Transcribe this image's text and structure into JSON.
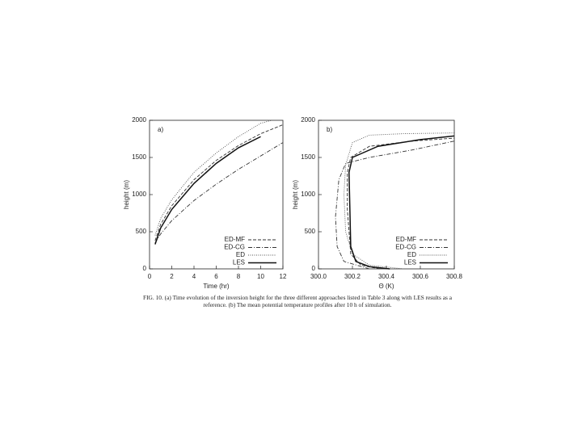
{
  "chart_data": [
    {
      "type": "line",
      "annotation": "a)",
      "x_label": "Time (hr)",
      "y_label": "height (m)",
      "xlim": [
        0,
        12
      ],
      "xticks": [
        0,
        2,
        4,
        6,
        8,
        10,
        12
      ],
      "ylim": [
        0,
        2000
      ],
      "yticks": [
        0,
        500,
        1000,
        1500,
        2000
      ],
      "legend": "lower right",
      "x": [
        0.5,
        1,
        2,
        4,
        6,
        8,
        10,
        11,
        12
      ],
      "series": [
        {
          "name": "ED-MF",
          "color": "#333333",
          "dash": "4,2",
          "values": [
            380,
            600,
            850,
            1200,
            1460,
            1660,
            1820,
            1880,
            1940
          ]
        },
        {
          "name": "ED-CG",
          "color": "#333333",
          "dash": "5,2,1,2",
          "values": [
            350,
            470,
            650,
            920,
            1140,
            1340,
            1520,
            1610,
            1700
          ]
        },
        {
          "name": "ED",
          "color": "#555555",
          "dash": "1,1.5",
          "values": [
            450,
            680,
            930,
            1300,
            1560,
            1780,
            1960,
            2000,
            null
          ]
        },
        {
          "name": "LES",
          "color": "#111111",
          "dash": "none",
          "values": [
            330,
            550,
            800,
            1150,
            1420,
            1630,
            1780,
            null,
            null
          ]
        }
      ]
    },
    {
      "type": "line",
      "annotation": "b)",
      "x_label": "Θ (K)",
      "y_label": "height (m)",
      "xlim": [
        300.0,
        300.8
      ],
      "xticks": [
        {
          "value": 300.0,
          "label": "300.0"
        },
        300.2,
        300.4,
        300.6,
        300.8
      ],
      "ylim": [
        0,
        2000
      ],
      "yticks": [
        0,
        500,
        1000,
        1500,
        2000
      ],
      "legend": "lower right",
      "series": [
        {
          "name": "ED-MF",
          "color": "#333333",
          "dash": "4,2",
          "x": [
            300.36,
            300.25,
            300.19,
            300.17,
            300.17,
            300.19,
            300.3,
            300.55,
            300.8
          ],
          "values": [
            0,
            50,
            200,
            800,
            1300,
            1500,
            1650,
            1720,
            1760
          ]
        },
        {
          "name": "ED-CG",
          "color": "#333333",
          "dash": "5,2,1,2",
          "x": [
            300.3,
            300.15,
            300.11,
            300.1,
            300.12,
            300.16,
            300.3,
            300.55,
            300.8
          ],
          "values": [
            0,
            100,
            300,
            700,
            1200,
            1420,
            1500,
            1600,
            1720
          ]
        },
        {
          "name": "ED",
          "color": "#555555",
          "dash": "1,1.5",
          "x": [
            300.5,
            300.3,
            300.2,
            300.16,
            300.15,
            300.16,
            300.2,
            300.3,
            300.5,
            300.8
          ],
          "values": [
            0,
            50,
            200,
            500,
            1000,
            1400,
            1700,
            1800,
            1820,
            1830
          ]
        },
        {
          "name": "LES",
          "color": "#111111",
          "dash": "none",
          "x": [
            300.42,
            300.3,
            300.22,
            300.19,
            300.185,
            300.18,
            300.2,
            300.35,
            300.6,
            300.8
          ],
          "values": [
            0,
            30,
            100,
            300,
            800,
            1300,
            1500,
            1650,
            1740,
            1790
          ]
        }
      ]
    }
  ],
  "caption": "FIG. 10. (a) Time evolution of the inversion height for the three different approaches listed in Table 3 along with LES results as a reference. (b) The mean potential temperature profiles after 10 h of simulation."
}
